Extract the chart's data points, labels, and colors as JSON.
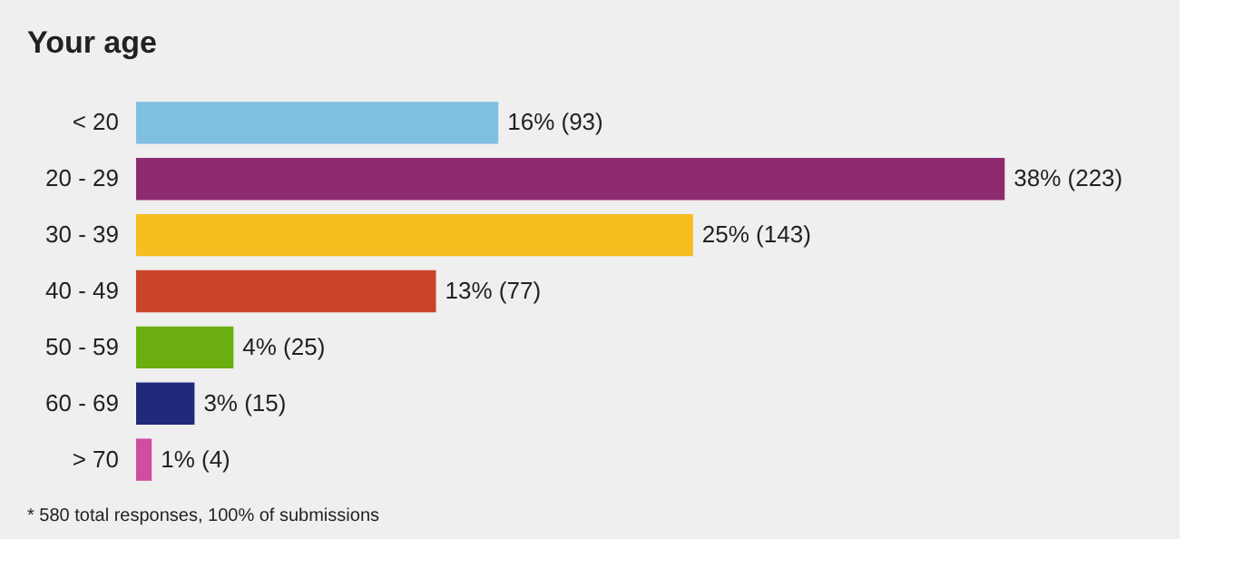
{
  "chart_data": {
    "type": "bar",
    "orientation": "horizontal",
    "title": "Your age",
    "categories": [
      "< 20",
      "20 - 29",
      "30 - 39",
      "40 - 49",
      "50 - 59",
      "60 - 69",
      "> 70"
    ],
    "values": [
      93,
      223,
      143,
      77,
      25,
      15,
      4
    ],
    "colors": [
      "#7fbfe0",
      "#8e2a70",
      "#f6bd1e",
      "#c9442a",
      "#6bae10",
      "#1f2a7c",
      "#d24ca0"
    ],
    "value_labels": [
      "16% (93)",
      "38% (223)",
      "25% (143)",
      "13% (77)",
      "4% (25)",
      "3% (15)",
      "1% (4)"
    ],
    "annotations": [
      "* 580 total responses, 100% of submissions"
    ],
    "grid": false
  }
}
